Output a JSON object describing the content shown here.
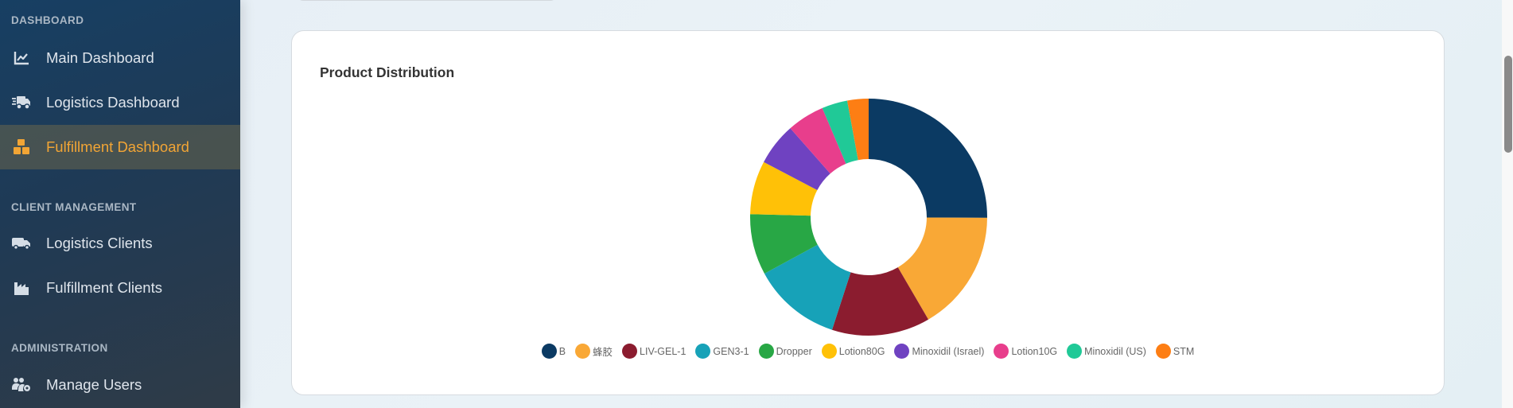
{
  "sidebar": {
    "sections": [
      {
        "title": "DASHBOARD"
      },
      {
        "title": "CLIENT MANAGEMENT"
      },
      {
        "title": "ADMINISTRATION"
      }
    ],
    "items": [
      {
        "label": "Main Dashboard",
        "icon": "chart-line-icon",
        "active": false
      },
      {
        "label": "Logistics Dashboard",
        "icon": "shipping-fast-icon",
        "active": false
      },
      {
        "label": "Fulfillment Dashboard",
        "icon": "boxes-icon",
        "active": true
      },
      {
        "label": "Logistics Clients",
        "icon": "truck-icon",
        "active": false
      },
      {
        "label": "Fulfillment Clients",
        "icon": "industry-icon",
        "active": false
      },
      {
        "label": "Manage Users",
        "icon": "users-cog-icon",
        "active": false
      }
    ],
    "active_color": "#f2a535"
  },
  "card": {
    "title": "Product Distribution"
  },
  "chart_data": {
    "type": "pie",
    "subtype": "doughnut",
    "title": "Product Distribution",
    "categories": [
      "B",
      "蜂胶",
      "LIV-GEL-1",
      "GEN3-1",
      "Dropper",
      "Lotion80G",
      "Minoxidil (Israel)",
      "Lotion10G",
      "Minoxidil (US)",
      "STM"
    ],
    "values": [
      25.1,
      16.5,
      13.4,
      12.1,
      8.3,
      7.3,
      5.8,
      5.1,
      3.5,
      2.9
    ],
    "unit": "percent (estimated from slice angles)",
    "colors": [
      "#0b3a63",
      "#f9a836",
      "#8b1c2f",
      "#17a2b8",
      "#28a745",
      "#ffc107",
      "#6f42c1",
      "#e83e8c",
      "#20c997",
      "#fd7e14"
    ],
    "legend_position": "bottom",
    "cutout": "49%"
  }
}
